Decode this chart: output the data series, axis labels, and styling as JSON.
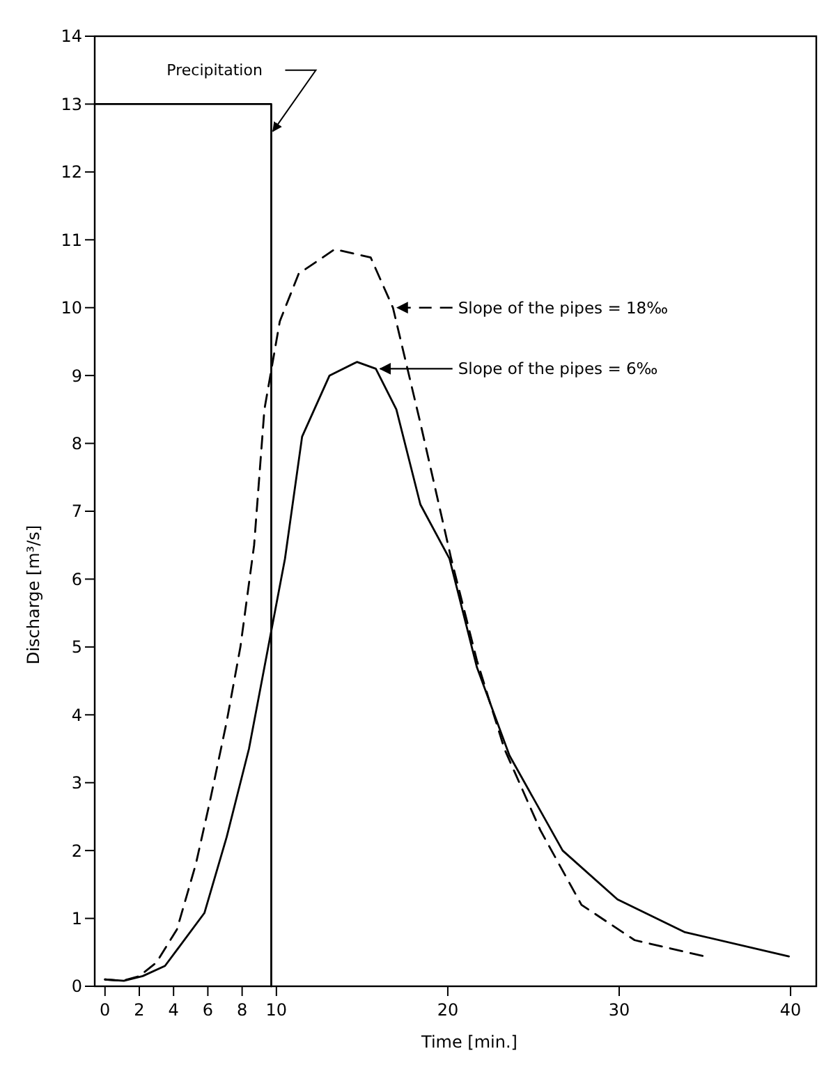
{
  "chart_data": {
    "type": "line",
    "xlabel": "Time [min.]",
    "ylabel": "Discharge [m³/s]",
    "xlim": [
      -0.6,
      41.5
    ],
    "ylim": [
      0,
      14
    ],
    "xticks": [
      0,
      2,
      4,
      6,
      8,
      10,
      20,
      30,
      40
    ],
    "yticks": [
      0,
      1,
      2,
      3,
      4,
      5,
      6,
      7,
      8,
      9,
      10,
      11,
      12,
      13,
      14
    ],
    "grid": false,
    "legend": "right",
    "marker": "none",
    "series": [
      {
        "name": "Precipitation",
        "color": "#000000",
        "line_style": "solid",
        "x": [
          -0.6,
          9.7,
          9.7
        ],
        "values": [
          13,
          13,
          0
        ]
      },
      {
        "name": "Slope of the pipes = 18‰",
        "color": "#000000",
        "line_style": "dashed",
        "x": [
          0,
          1,
          2,
          3,
          4.2,
          5.3,
          6.1,
          7.1,
          7.9,
          8.7,
          9.3,
          10.2,
          11.3,
          13.4,
          15.5,
          16.8,
          18.4,
          20.2,
          21.7,
          23.3,
          25.4,
          27.8,
          30.9,
          35.0
        ],
        "values": [
          0.1,
          0.08,
          0.15,
          0.35,
          0.84,
          1.8,
          2.7,
          3.9,
          5.0,
          6.5,
          8.5,
          9.8,
          10.5,
          10.86,
          10.74,
          10.0,
          8.3,
          6.3,
          4.8,
          3.5,
          2.3,
          1.2,
          0.68,
          0.44
        ]
      },
      {
        "name": "Slope of the pipes = 6‰",
        "color": "#000000",
        "line_style": "solid",
        "x": [
          0,
          1.1,
          2.2,
          3.5,
          5.8,
          7.1,
          8.4,
          9.6,
          10.5,
          11.5,
          13.1,
          14.7,
          15.8,
          17.0,
          18.4,
          20.1,
          21.7,
          23.6,
          26.7,
          29.9,
          33.8,
          39.9
        ],
        "values": [
          0.1,
          0.08,
          0.15,
          0.3,
          1.08,
          2.2,
          3.5,
          5.1,
          6.3,
          8.1,
          9.0,
          9.2,
          9.1,
          8.5,
          7.1,
          6.3,
          4.7,
          3.4,
          2.0,
          1.28,
          0.8,
          0.44
        ]
      }
    ]
  }
}
